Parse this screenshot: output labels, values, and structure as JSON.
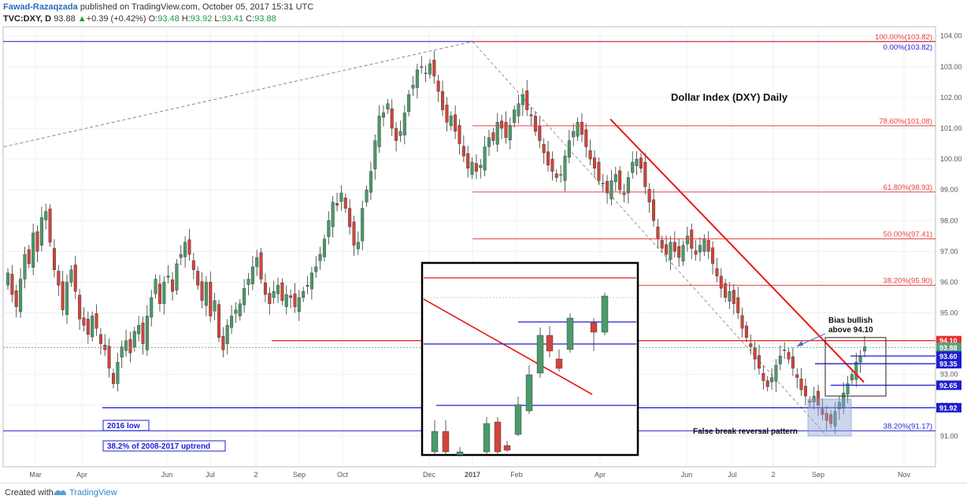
{
  "header": {
    "author": "Fawad-Razaqzada",
    "published": "published on TradingView.com, October 05, 2017 15:31 UTC",
    "symbol": "TVC:DXY, D",
    "last": "93.88",
    "change": "+0.39 (+0.42%)",
    "o_label": "O:",
    "o": "93.48",
    "h_label": "H:",
    "h": "93.92",
    "l_label": "L:",
    "l": "93.41",
    "c_label": "C:",
    "c": "93.88"
  },
  "footer": {
    "created_with": "Created with",
    "brand": "TradingView"
  },
  "colors": {
    "up": "#4a9a6a",
    "down": "#d0453a",
    "fib": "#e84040",
    "support": "#1f1fd0",
    "axis_label_bg": "#1f1fd0",
    "resistance_label_bg": "#e83030"
  },
  "chart_data": {
    "type": "candlestick",
    "title": "Dollar Index (DXY) Daily",
    "y_ticks": [
      "104.00",
      "103.00",
      "102.00",
      "101.00",
      "100.00",
      "99.00",
      "98.00",
      "97.00",
      "96.00",
      "95.00",
      "94.00",
      "93.00",
      "92.00",
      "91.00"
    ],
    "ylim": [
      90.0,
      104.3
    ],
    "x_ticks": [
      "Mar",
      "Apr",
      "Jun",
      "Jul",
      "Sep",
      "Oct",
      "Dec",
      "2017",
      "Feb",
      "Apr",
      "Jun",
      "Jul",
      "Sep",
      "Nov"
    ],
    "x_ticks_partial": [
      "2",
      "2"
    ],
    "fib_levels": [
      {
        "label": "100.00%(103.82)",
        "value": 103.82
      },
      {
        "label": "0.00%(103.82)",
        "value": 103.82
      },
      {
        "label": "78.60%(101.08)",
        "value": 101.08
      },
      {
        "label": "61.80%(98.93)",
        "value": 98.93
      },
      {
        "label": "50.00%(97.41)",
        "value": 97.41
      },
      {
        "label": "38.20%(95.90)",
        "value": 95.9
      },
      {
        "label": "38.20%(91.17)",
        "value": 91.17
      }
    ],
    "price_labels": [
      {
        "text": "94.10",
        "value": 94.1,
        "kind": "resistance"
      },
      {
        "text": "93.88",
        "value": 93.88,
        "kind": "last"
      },
      {
        "text": "93.60",
        "value": 93.6,
        "kind": "support"
      },
      {
        "text": "93.35",
        "value": 93.35,
        "kind": "support"
      },
      {
        "text": "92.65",
        "value": 92.65,
        "kind": "support"
      },
      {
        "text": "91.92",
        "value": 91.92,
        "kind": "support"
      }
    ],
    "annotations": {
      "low_2016": "2016 low",
      "uptrend": "38.2% of 2008-2017 uptrend",
      "bias": "Bias bullish",
      "bias_level": "above 94.10",
      "false_break": "False break reversal pattern"
    },
    "series_close": [
      96.3,
      95.6,
      95.2,
      96.1,
      96.9,
      96.6,
      97.6,
      97.0,
      98.1,
      98.3,
      97.3,
      96.4,
      95.9,
      95.1,
      96.0,
      96.4,
      95.7,
      94.8,
      94.6,
      94.3,
      94.9,
      94.5,
      94.0,
      93.8,
      93.2,
      92.7,
      93.4,
      93.9,
      94.1,
      93.7,
      94.4,
      94.6,
      94.0,
      94.9,
      95.5,
      96.1,
      95.3,
      96.0,
      96.2,
      95.7,
      96.6,
      96.9,
      97.3,
      96.9,
      96.4,
      95.9,
      95.4,
      96.0,
      94.9,
      95.4,
      94.2,
      93.8,
      94.6,
      94.9,
      95.1,
      95.3,
      95.8,
      96.1,
      96.5,
      96.8,
      96.1,
      95.6,
      95.3,
      95.7,
      95.9,
      95.4,
      95.6,
      95.5,
      95.2,
      95.5,
      95.7,
      95.9,
      96.3,
      96.5,
      96.9,
      97.4,
      98.0,
      98.6,
      98.5,
      98.9,
      98.4,
      97.8,
      97.2,
      97.3,
      98.4,
      99.0,
      99.6,
      100.6,
      101.4,
      101.5,
      101.8,
      101.0,
      100.6,
      100.9,
      101.5,
      102.1,
      102.4,
      102.9,
      103.0,
      102.8,
      103.1,
      102.7,
      102.2,
      101.6,
      101.2,
      101.4,
      100.9,
      100.5,
      100.1,
      99.7,
      99.9,
      99.6,
      99.8,
      100.4,
      100.7,
      100.6,
      101.2,
      101.0,
      100.7,
      101.1,
      101.6,
      101.8,
      102.1,
      101.6,
      101.4,
      100.9,
      100.6,
      100.2,
      99.8,
      99.6,
      99.4,
      99.5,
      100.1,
      100.6,
      100.9,
      101.2,
      100.8,
      100.4,
      100.0,
      99.7,
      99.3,
      99.2,
      98.9,
      99.3,
      99.5,
      99.0,
      98.9,
      99.4,
      99.9,
      100.0,
      99.7,
      99.1,
      98.6,
      98.0,
      97.4,
      97.1,
      96.9,
      97.3,
      97.0,
      96.8,
      97.2,
      97.5,
      97.1,
      96.9,
      97.2,
      97.4,
      97.0,
      96.6,
      96.2,
      95.8,
      95.5,
      95.7,
      95.3,
      95.0,
      94.5,
      94.2,
      93.9,
      93.5,
      93.2,
      92.8,
      92.6,
      92.9,
      93.3,
      93.6,
      93.8,
      93.5,
      93.2,
      92.9,
      92.5,
      92.3,
      92.1,
      92.3,
      92.0,
      91.7,
      91.5,
      91.4,
      91.8,
      92.1,
      92.4,
      92.7,
      93.0,
      93.4,
      93.6,
      93.9
    ]
  }
}
